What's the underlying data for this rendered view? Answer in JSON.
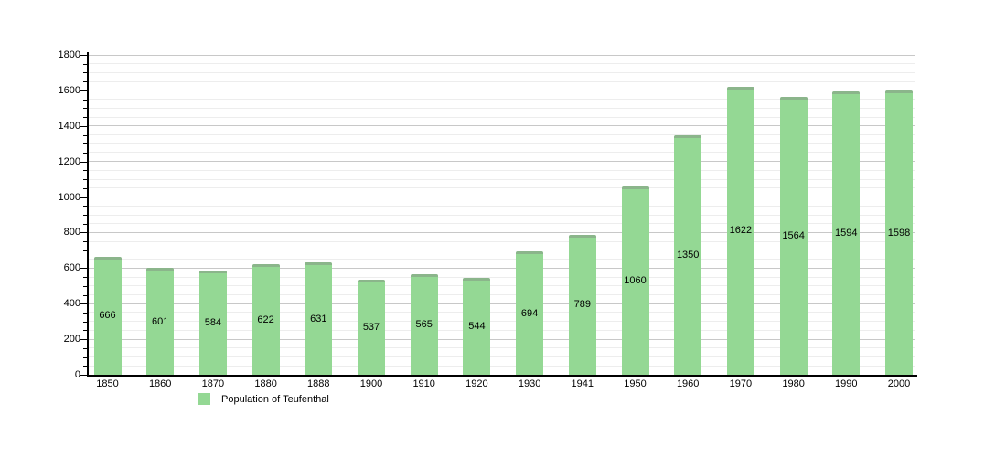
{
  "chart_data": {
    "type": "bar",
    "title": "Population of Teufenthal",
    "categories": [
      "1850",
      "1860",
      "1870",
      "1880",
      "1888",
      "1900",
      "1910",
      "1920",
      "1930",
      "1941",
      "1950",
      "1960",
      "1970",
      "1980",
      "1990",
      "2000"
    ],
    "values": [
      666,
      601,
      584,
      622,
      631,
      537,
      565,
      544,
      694,
      789,
      1060,
      1350,
      1622,
      1564,
      1594,
      1598
    ],
    "xlabel": "",
    "ylabel": "",
    "ylim": [
      0,
      1800
    ],
    "ytick_step": 200,
    "yminor_step": 50,
    "ytick_labels": [
      "0",
      "200",
      "400",
      "600",
      "800",
      "1000",
      "1200",
      "1400",
      "1600",
      "1800"
    ],
    "grid": true,
    "value_labels_inside_bars": true,
    "legend_position": "bottom-left",
    "legend_label": "Population of Teufenthal",
    "bar_color": "#94d894",
    "major_grid_color": "#c8c8c8",
    "minor_grid_color": "#ededed",
    "axis_color": "#000000",
    "text_color": "#000000"
  }
}
